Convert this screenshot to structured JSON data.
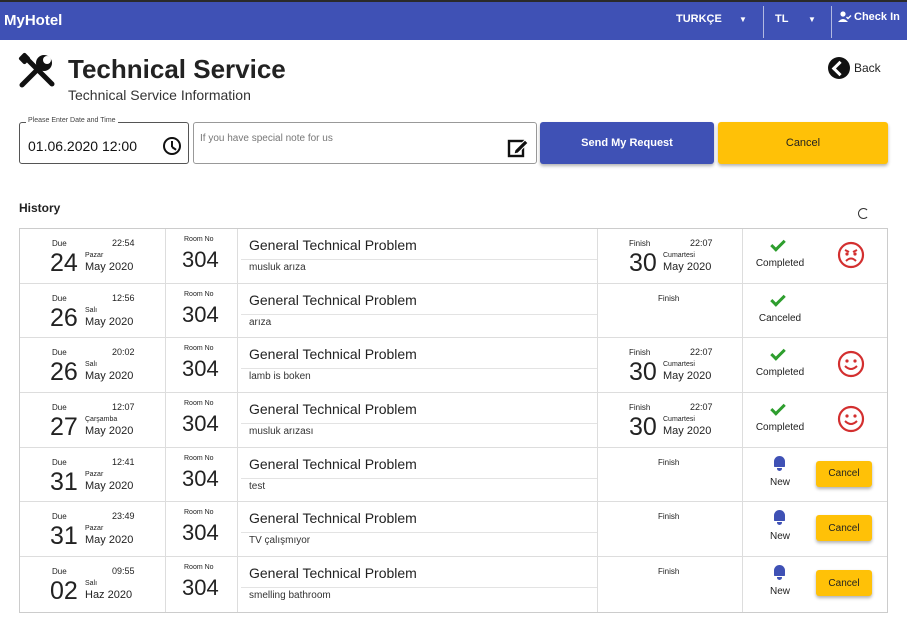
{
  "topbar": {
    "brand": "MyHotel",
    "language": "TURKÇE",
    "currency": "TL",
    "checkin": "Check In"
  },
  "header": {
    "title": "Technical Service",
    "subtitle": "Technical Service Information",
    "back": "Back"
  },
  "form": {
    "datetime_legend": "Please Enter Date and Time",
    "datetime_value": "01.06.2020 12:00",
    "note_placeholder": "If you have special note for us",
    "send_label": "Send My Request",
    "cancel_label": "Cancel"
  },
  "history": {
    "label": "History",
    "due_label": "Due",
    "room_label": "Room No",
    "finish_label": "Finish",
    "rows": [
      {
        "due_time": "22:54",
        "due_day": "24",
        "due_dow": "Pazar",
        "due_my": "May 2020",
        "room": "304",
        "title": "General Technical Problem",
        "desc": "musluk arıza",
        "fin_time": "22:07",
        "fin_day": "30",
        "fin_dow": "Cumartesi",
        "fin_my": "May 2020",
        "status": "Completed",
        "status_icon": "check-icon",
        "face": "angry-face-icon"
      },
      {
        "due_time": "12:56",
        "due_day": "26",
        "due_dow": "Salı",
        "due_my": "May 2020",
        "room": "304",
        "title": "General Technical Problem",
        "desc": "arıza",
        "fin_time": "",
        "fin_day": "",
        "fin_dow": "",
        "fin_my": "",
        "status": "Canceled",
        "status_icon": "check-icon",
        "face": ""
      },
      {
        "due_time": "20:02",
        "due_day": "26",
        "due_dow": "Salı",
        "due_my": "May 2020",
        "room": "304",
        "title": "General Technical Problem",
        "desc": "lamb is boken",
        "fin_time": "22:07",
        "fin_day": "30",
        "fin_dow": "Cumartesi",
        "fin_my": "May 2020",
        "status": "Completed",
        "status_icon": "check-icon",
        "face": "happy-face-icon"
      },
      {
        "due_time": "12:07",
        "due_day": "27",
        "due_dow": "Çarşamba",
        "due_my": "May 2020",
        "room": "304",
        "title": "General Technical Problem",
        "desc": "musluk arızası",
        "fin_time": "22:07",
        "fin_day": "30",
        "fin_dow": "Cumartesi",
        "fin_my": "May 2020",
        "status": "Completed",
        "status_icon": "check-icon",
        "face": "happy-face-icon"
      },
      {
        "due_time": "12:41",
        "due_day": "31",
        "due_dow": "Pazar",
        "due_my": "May 2020",
        "room": "304",
        "title": "General Technical Problem",
        "desc": "test",
        "fin_time": "",
        "fin_day": "",
        "fin_dow": "",
        "fin_my": "",
        "status": "New",
        "status_icon": "bell-icon",
        "cancel": "Cancel"
      },
      {
        "due_time": "23:49",
        "due_day": "31",
        "due_dow": "Pazar",
        "due_my": "May 2020",
        "room": "304",
        "title": "General Technical Problem",
        "desc": "TV çalışmıyor",
        "fin_time": "",
        "fin_day": "",
        "fin_dow": "",
        "fin_my": "",
        "status": "New",
        "status_icon": "bell-icon",
        "cancel": "Cancel"
      },
      {
        "due_time": "09:55",
        "due_day": "02",
        "due_dow": "Salı",
        "due_my": "Haz 2020",
        "room": "304",
        "title": "General Technical Problem",
        "desc": "smelling bathroom",
        "fin_time": "",
        "fin_day": "",
        "fin_dow": "",
        "fin_my": "",
        "status": "New",
        "status_icon": "bell-icon",
        "cancel": "Cancel"
      }
    ]
  },
  "colors": {
    "primary": "#3f51b5",
    "accent": "#ffc107",
    "success": "#2e9e2e",
    "danger": "#d32f2f"
  }
}
